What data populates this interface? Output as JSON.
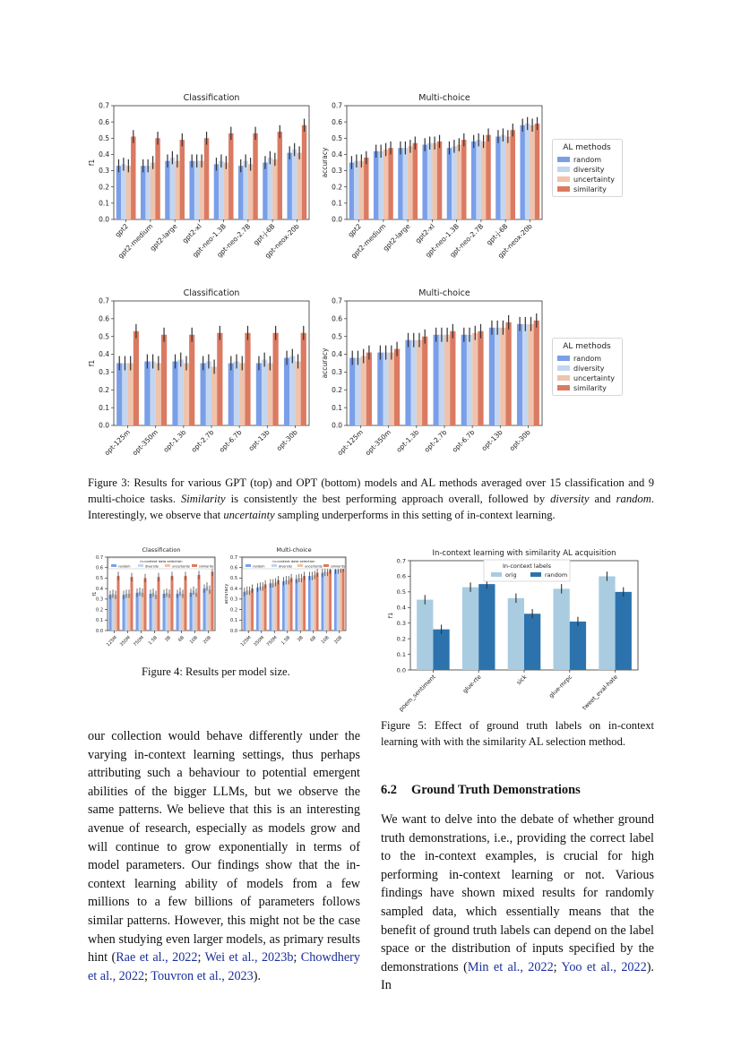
{
  "colors": {
    "random": "#7a9fe8",
    "diversity": "#c4d6ef",
    "uncertainty": "#efc3ac",
    "similarity": "#db7a62",
    "orig": "#a9cce0",
    "random5": "#2c73ad",
    "error": "#333333"
  },
  "legend_al": {
    "title": "AL methods",
    "items": [
      "random",
      "diversity",
      "uncertainty",
      "similarity"
    ]
  },
  "figure3": {
    "gpt": {
      "classification": {
        "type": "bar",
        "title": "Classification",
        "ylabel": "f1",
        "ylim": [
          0,
          0.7
        ],
        "yticks": [
          "0.0",
          "0.1",
          "0.2",
          "0.3",
          "0.4",
          "0.5",
          "0.6",
          "0.7"
        ],
        "categories": [
          "gpt2",
          "gpt2-medium",
          "gpt2-large",
          "gpt2-xl",
          "gpt-neo-1.3B",
          "gpt-neo-2.7B",
          "gpt-j-6B",
          "gpt-neox-20b"
        ],
        "series": [
          {
            "name": "random",
            "values": [
              0.33,
              0.33,
              0.36,
              0.36,
              0.34,
              0.33,
              0.35,
              0.41
            ]
          },
          {
            "name": "diversity",
            "values": [
              0.34,
              0.33,
              0.38,
              0.36,
              0.36,
              0.36,
              0.38,
              0.43
            ]
          },
          {
            "name": "uncertainty",
            "values": [
              0.33,
              0.35,
              0.36,
              0.36,
              0.35,
              0.34,
              0.37,
              0.41
            ]
          },
          {
            "name": "similarity",
            "values": [
              0.51,
              0.5,
              0.49,
              0.5,
              0.53,
              0.53,
              0.54,
              0.58
            ]
          }
        ]
      },
      "multichoice": {
        "type": "bar",
        "title": "Multi-choice",
        "ylabel": "accuracy",
        "ylim": [
          0,
          0.7
        ],
        "yticks": [
          "0.0",
          "0.1",
          "0.2",
          "0.3",
          "0.4",
          "0.5",
          "0.6",
          "0.7"
        ],
        "categories": [
          "gpt2",
          "gpt2-medium",
          "gpt2-large",
          "gpt2-xl",
          "gpt-neo-1.3B",
          "gpt-neo-2.7B",
          "gpt-j-6B",
          "gpt-neox-20b"
        ],
        "series": [
          {
            "name": "random",
            "values": [
              0.35,
              0.42,
              0.44,
              0.46,
              0.44,
              0.48,
              0.51,
              0.58
            ]
          },
          {
            "name": "diversity",
            "values": [
              0.36,
              0.42,
              0.44,
              0.47,
              0.45,
              0.49,
              0.52,
              0.59
            ]
          },
          {
            "name": "uncertainty",
            "values": [
              0.36,
              0.43,
              0.45,
              0.47,
              0.46,
              0.48,
              0.51,
              0.58
            ]
          },
          {
            "name": "similarity",
            "values": [
              0.38,
              0.44,
              0.47,
              0.48,
              0.49,
              0.52,
              0.55,
              0.59
            ]
          }
        ]
      }
    },
    "opt": {
      "classification": {
        "type": "bar",
        "title": "Classification",
        "ylabel": "f1",
        "ylim": [
          0,
          0.7
        ],
        "yticks": [
          "0.0",
          "0.1",
          "0.2",
          "0.3",
          "0.4",
          "0.5",
          "0.6",
          "0.7"
        ],
        "categories": [
          "opt-125m",
          "opt-350m",
          "opt-1.3b",
          "opt-2.7b",
          "opt-6.7b",
          "opt-13b",
          "opt-30b"
        ],
        "series": [
          {
            "name": "random",
            "values": [
              0.35,
              0.36,
              0.36,
              0.35,
              0.35,
              0.35,
              0.38
            ]
          },
          {
            "name": "diversity",
            "values": [
              0.35,
              0.36,
              0.37,
              0.36,
              0.36,
              0.37,
              0.39
            ]
          },
          {
            "name": "uncertainty",
            "values": [
              0.35,
              0.35,
              0.35,
              0.33,
              0.35,
              0.35,
              0.36
            ]
          },
          {
            "name": "similarity",
            "values": [
              0.53,
              0.51,
              0.51,
              0.52,
              0.52,
              0.52,
              0.52
            ]
          }
        ]
      },
      "multichoice": {
        "type": "bar",
        "title": "Multi-choice",
        "ylabel": "accuracy",
        "ylim": [
          0,
          0.7
        ],
        "yticks": [
          "0.0",
          "0.1",
          "0.2",
          "0.3",
          "0.4",
          "0.5",
          "0.6",
          "0.7"
        ],
        "categories": [
          "opt-125m",
          "opt-350m",
          "opt-1.3b",
          "opt-2.7b",
          "opt-6.7b",
          "opt-13b",
          "opt-30b"
        ],
        "series": [
          {
            "name": "random",
            "values": [
              0.38,
              0.41,
              0.48,
              0.51,
              0.51,
              0.55,
              0.57
            ]
          },
          {
            "name": "diversity",
            "values": [
              0.38,
              0.41,
              0.48,
              0.51,
              0.51,
              0.55,
              0.57
            ]
          },
          {
            "name": "uncertainty",
            "values": [
              0.39,
              0.41,
              0.48,
              0.51,
              0.52,
              0.55,
              0.57
            ]
          },
          {
            "name": "similarity",
            "values": [
              0.41,
              0.43,
              0.5,
              0.53,
              0.53,
              0.58,
              0.59
            ]
          }
        ]
      }
    },
    "caption": {
      "label": "Figure 3: Results for various GPT (top) and OPT (bottom) models and AL methods averaged over 15 classification and 9 multi-choice tasks. ",
      "em1": "Similarity",
      "t1": " is consistently the best performing approach overall, followed by ",
      "em2": "diversity",
      "t2": " and ",
      "em3": "random",
      "t3": ". Interestingly, we observe that ",
      "em4": "uncertainty",
      "t4": " sampling underperforms in this setting of in-context learning."
    }
  },
  "figure4": {
    "legend_title": "in-context data selection",
    "legend_items": [
      "random",
      "diversity",
      "uncertainty",
      "similarity"
    ],
    "classification": {
      "type": "bar",
      "title": "Classification",
      "ylabel": "f1",
      "ylim": [
        0,
        0.7
      ],
      "yticks": [
        "0.0",
        "0.1",
        "0.2",
        "0.3",
        "0.4",
        "0.5",
        "0.6",
        "0.7"
      ],
      "categories": [
        "125M",
        "350M",
        "750M",
        "1.5B",
        "3B",
        "6B",
        "10B",
        "20B"
      ],
      "series": [
        {
          "name": "random",
          "values": [
            0.34,
            0.34,
            0.36,
            0.35,
            0.35,
            0.35,
            0.36,
            0.4
          ]
        },
        {
          "name": "diversity",
          "values": [
            0.35,
            0.35,
            0.37,
            0.36,
            0.36,
            0.37,
            0.38,
            0.42
          ]
        },
        {
          "name": "uncertainty",
          "values": [
            0.34,
            0.35,
            0.36,
            0.34,
            0.35,
            0.35,
            0.36,
            0.39
          ]
        },
        {
          "name": "similarity",
          "values": [
            0.52,
            0.51,
            0.5,
            0.51,
            0.52,
            0.52,
            0.53,
            0.56
          ]
        }
      ]
    },
    "multichoice": {
      "type": "bar",
      "title": "Multi-choice",
      "ylabel": "accuracy",
      "ylim": [
        0,
        0.7
      ],
      "yticks": [
        "0.0",
        "0.1",
        "0.2",
        "0.3",
        "0.4",
        "0.5",
        "0.6",
        "0.7"
      ],
      "categories": [
        "125M",
        "350M",
        "750M",
        "1.5B",
        "3B",
        "6B",
        "10B",
        "20B"
      ],
      "series": [
        {
          "name": "random",
          "values": [
            0.37,
            0.41,
            0.45,
            0.47,
            0.49,
            0.52,
            0.55,
            0.58
          ]
        },
        {
          "name": "diversity",
          "values": [
            0.38,
            0.42,
            0.45,
            0.48,
            0.5,
            0.52,
            0.56,
            0.58
          ]
        },
        {
          "name": "uncertainty",
          "values": [
            0.38,
            0.42,
            0.46,
            0.48,
            0.5,
            0.53,
            0.56,
            0.59
          ]
        },
        {
          "name": "similarity",
          "values": [
            0.4,
            0.44,
            0.48,
            0.5,
            0.52,
            0.55,
            0.58,
            0.6
          ]
        }
      ]
    },
    "caption": "Figure 4: Results per model size."
  },
  "figure5": {
    "chart": {
      "type": "bar",
      "title": "In-context learning with similarity AL acquisition",
      "ylabel": "f1",
      "ylim": [
        0,
        0.7
      ],
      "yticks": [
        "0.0",
        "0.1",
        "0.2",
        "0.3",
        "0.4",
        "0.5",
        "0.6",
        "0.7"
      ],
      "categories": [
        "poem_sentiment",
        "glue-rte",
        "sick",
        "glue-mrpc",
        "tweet_eval-hate"
      ],
      "legend_title": "In-context labels",
      "series": [
        {
          "name": "orig",
          "values": [
            0.45,
            0.53,
            0.46,
            0.52,
            0.6
          ]
        },
        {
          "name": "random",
          "values": [
            0.26,
            0.55,
            0.36,
            0.31,
            0.5
          ]
        }
      ]
    },
    "caption": "Figure 5: Effect of ground truth labels on in-context learning with with the similarity AL selection method."
  },
  "left_text": {
    "body": "our collection would behave differently under the varying in-context learning settings, thus perhaps attributing such a behaviour to potential emergent abilities of the bigger LLMs, but we observe the same patterns. We believe that this is an interesting avenue of research, especially as models grow and will continue to grow exponentially in terms of model parameters. Our findings show that the in-context learning ability of models from a few millions to a few billions of parameters follows similar patterns. However, this might not be the case when studying even larger models, as primary results hint (",
    "c1": "Rae et al., 2022",
    "s1": "; ",
    "c2": "Wei et al., 2023b",
    "s2": "; ",
    "c3": "Chowdhery et al., 2022",
    "s3": "; ",
    "c4": "Touvron et al., 2023",
    "end": ")."
  },
  "right_text": {
    "section_number": "6.2",
    "section_title": "Ground Truth Demonstrations",
    "body": "We want to delve into the debate of whether ground truth demonstrations, i.e., providing the correct label to the in-context examples, is crucial for high performing in-context learning or not. Various findings have shown mixed results for randomly sampled data, which essentially means that the benefit of ground truth labels can depend on the label space or the distribution of inputs specified by the demonstrations (",
    "c1": "Min et al., 2022",
    "s1": "; ",
    "c2": "Yoo et al., 2022",
    "end": "). In"
  }
}
